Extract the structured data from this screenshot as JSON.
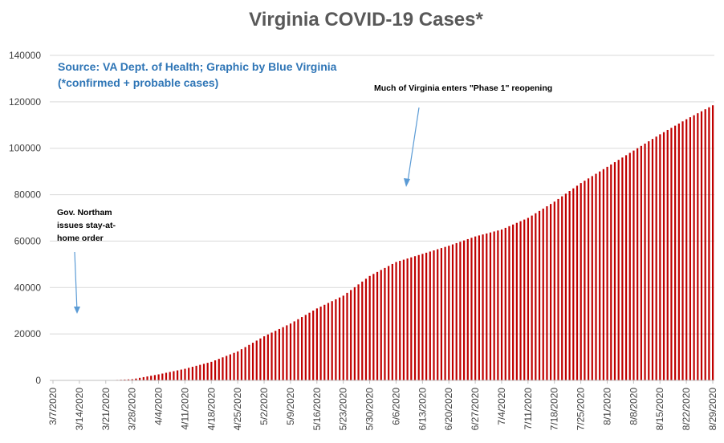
{
  "chart_data": {
    "type": "bar",
    "title": "Virginia COVID-19 Cases*",
    "xlabel": "",
    "ylabel": "",
    "ylim": [
      0,
      140000
    ],
    "yticks": [
      0,
      20000,
      40000,
      60000,
      80000,
      100000,
      120000,
      140000
    ],
    "grid": true,
    "bar_color": "#c00000",
    "x_start_date": "3/7/2020",
    "x_end_date": "8/29/2020",
    "x_tick_labels": [
      "3/7/2020",
      "3/14/2020",
      "3/21/2020",
      "3/28/2020",
      "4/4/2020",
      "4/11/2020",
      "4/18/2020",
      "4/25/2020",
      "5/2/2020",
      "5/9/2020",
      "5/16/2020",
      "5/23/2020",
      "5/30/2020",
      "6/6/2020",
      "6/13/2020",
      "6/20/2020",
      "6/27/2020",
      "7/4/2020",
      "7/11/2020",
      "7/18/2020",
      "7/25/2020",
      "8/1/2020",
      "8/8/2020",
      "8/15/2020",
      "8/22/2020",
      "8/29/2020"
    ],
    "x": [
      "3/7/2020",
      "3/14/2020",
      "3/21/2020",
      "3/28/2020",
      "4/4/2020",
      "4/11/2020",
      "4/18/2020",
      "4/25/2020",
      "5/2/2020",
      "5/9/2020",
      "5/16/2020",
      "5/23/2020",
      "5/30/2020",
      "6/6/2020",
      "6/13/2020",
      "6/20/2020",
      "6/27/2020",
      "7/4/2020",
      "7/11/2020",
      "7/18/2020",
      "7/25/2020",
      "8/1/2020",
      "8/8/2020",
      "8/15/2020",
      "8/22/2020",
      "8/29/2020"
    ],
    "values": [
      0,
      0,
      0,
      500,
      2600,
      5000,
      8000,
      12500,
      19000,
      24500,
      31000,
      36500,
      45000,
      51000,
      54500,
      58000,
      62000,
      65000,
      70000,
      77000,
      85000,
      92000,
      99000,
      106000,
      112500,
      118500
    ],
    "source_note": [
      "Source: VA Dept. of Health; Graphic by Blue Virginia",
      "(*confirmed + probable cases)"
    ],
    "annotations": [
      {
        "lines": [
          "Gov. Northam",
          "issues stay-at-",
          "home order"
        ],
        "date": "3/12/2020"
      },
      {
        "lines": [
          "Much of Virginia enters \"Phase 1\" reopening"
        ],
        "date": "5/15/2020"
      }
    ]
  }
}
